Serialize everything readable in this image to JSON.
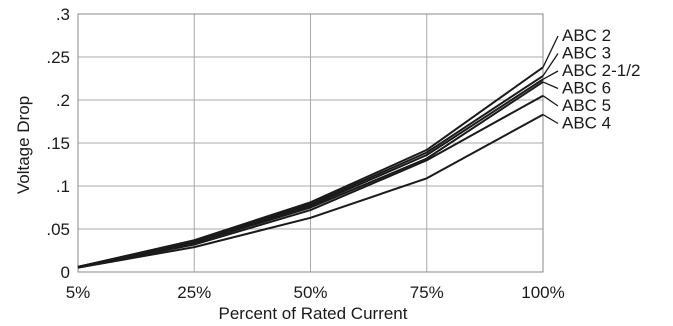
{
  "chart_data": {
    "type": "line",
    "title": "",
    "xlabel": "Percent of Rated Current",
    "ylabel": "Voltage Drop",
    "categories": [
      "5%",
      "25%",
      "50%",
      "75%",
      "100%"
    ],
    "ylim": [
      0,
      0.3
    ],
    "yticks": [
      0,
      0.05,
      0.1,
      0.15,
      0.2,
      0.25,
      0.3
    ],
    "ytick_labels": [
      "0",
      ".05",
      ".1",
      ".15",
      ".2",
      ".25",
      ".3"
    ],
    "grid": true,
    "series": [
      {
        "name": "ABC 2",
        "values": [
          0.006,
          0.037,
          0.081,
          0.142,
          0.238
        ]
      },
      {
        "name": "ABC 3",
        "values": [
          0.006,
          0.036,
          0.079,
          0.139,
          0.228
        ]
      },
      {
        "name": "ABC 2-1/2",
        "values": [
          0.006,
          0.035,
          0.077,
          0.136,
          0.224
        ]
      },
      {
        "name": "ABC 6",
        "values": [
          0.006,
          0.034,
          0.075,
          0.132,
          0.221
        ]
      },
      {
        "name": "ABC 5",
        "values": [
          0.005,
          0.032,
          0.072,
          0.13,
          0.205
        ]
      },
      {
        "name": "ABC 4",
        "values": [
          0.005,
          0.029,
          0.063,
          0.109,
          0.183
        ]
      }
    ]
  }
}
